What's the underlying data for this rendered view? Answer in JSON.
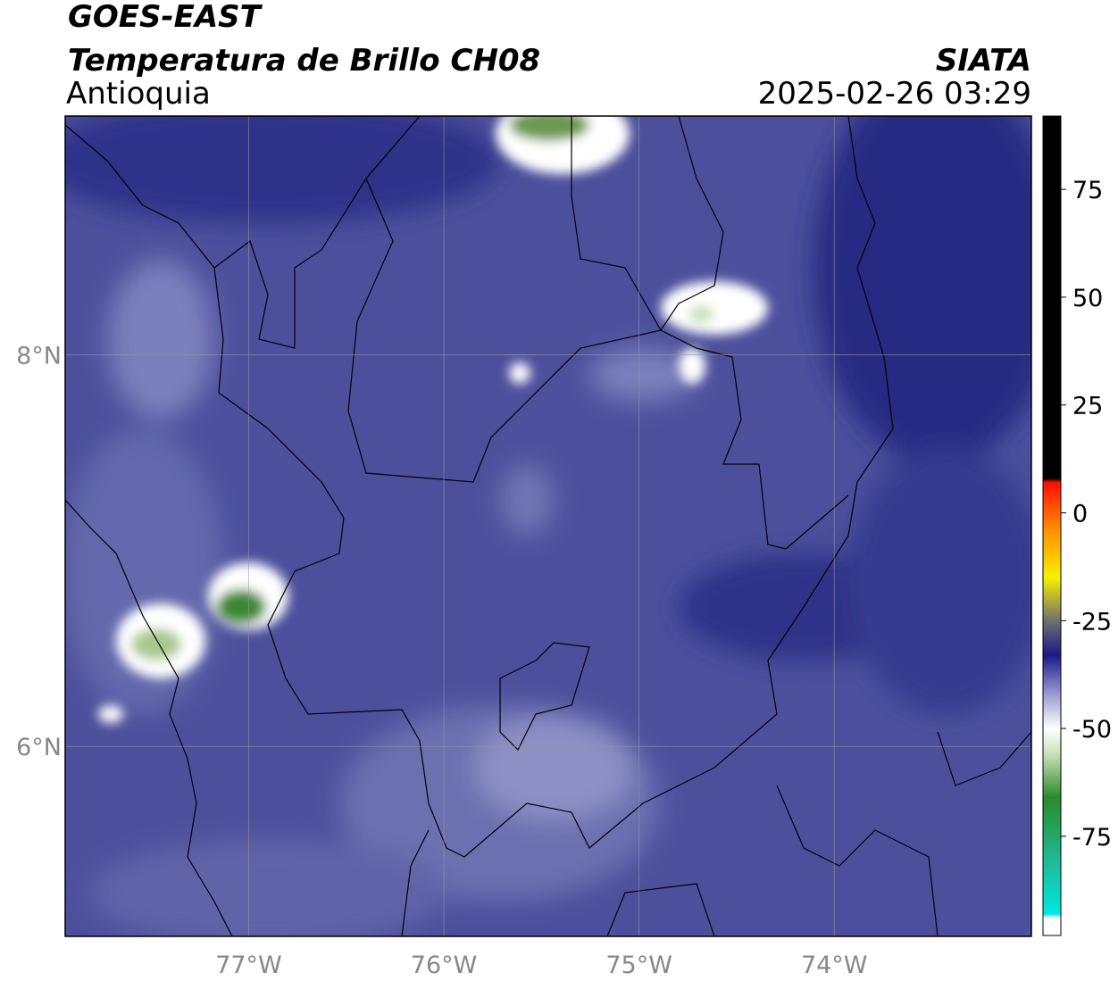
{
  "header": {
    "title": "GOES-EAST",
    "subtitle": "Temperatura de Brillo CH08",
    "region": "Antioquia",
    "source": "SIATA",
    "datetime": "2025-02-26 03:29"
  },
  "map": {
    "xlim": [
      -77.94,
      -72.99
    ],
    "ylim": [
      5.03,
      9.22
    ],
    "xticks": [
      {
        "value": -77,
        "label": "77°W"
      },
      {
        "value": -76,
        "label": "76°W"
      },
      {
        "value": -75,
        "label": "75°W"
      },
      {
        "value": -74,
        "label": "74°W"
      }
    ],
    "yticks": [
      {
        "value": 8,
        "label": "8°N"
      },
      {
        "value": 6,
        "label": "6°N"
      }
    ],
    "grid": true
  },
  "colorbar": {
    "lim": [
      -98,
      92
    ],
    "ticks": [
      75,
      50,
      25,
      0,
      -25,
      -50,
      -75
    ],
    "stops": [
      {
        "value": -98,
        "color": "#ffffff"
      },
      {
        "value": -94,
        "color": "#ffffff"
      },
      {
        "value": -93,
        "color": "#00e8e0"
      },
      {
        "value": -80,
        "color": "#20b890"
      },
      {
        "value": -66,
        "color": "#2a8a2a"
      },
      {
        "value": -56,
        "color": "#c8e0b8"
      },
      {
        "value": -50,
        "color": "#ffffff"
      },
      {
        "value": -42,
        "color": "#9a9ad0"
      },
      {
        "value": -33,
        "color": "#1a1a88"
      },
      {
        "value": -25,
        "color": "#707070"
      },
      {
        "value": -15,
        "color": "#f8f000"
      },
      {
        "value": -4,
        "color": "#ff9000"
      },
      {
        "value": 7,
        "color": "#ff1000"
      },
      {
        "value": 8,
        "color": "#000000"
      },
      {
        "value": 92,
        "color": "#000000"
      }
    ]
  }
}
